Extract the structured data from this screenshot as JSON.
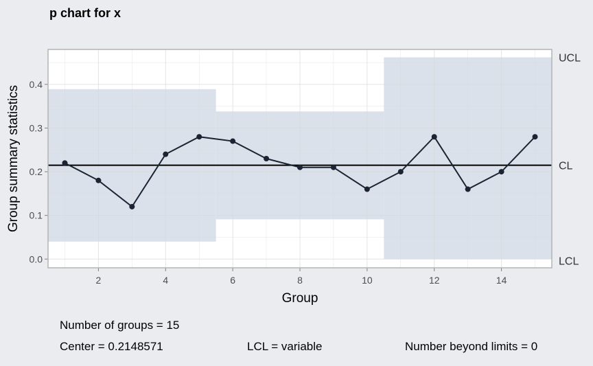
{
  "chart_data": {
    "type": "line",
    "title": "p chart for x",
    "xlabel": "Group",
    "ylabel": "Group summary statistics",
    "xlim": [
      0.5,
      15.5
    ],
    "ylim": [
      -0.02,
      0.48
    ],
    "x_ticks": [
      2,
      4,
      6,
      8,
      10,
      12,
      14
    ],
    "y_ticks": [
      0.0,
      0.1,
      0.2,
      0.3,
      0.4
    ],
    "y_tick_labels": [
      "0.0",
      "0.1",
      "0.2",
      "0.3",
      "0.4"
    ],
    "x": [
      1,
      2,
      3,
      4,
      5,
      6,
      7,
      8,
      9,
      10,
      11,
      12,
      13,
      14,
      15
    ],
    "values": [
      0.22,
      0.18,
      0.12,
      0.24,
      0.28,
      0.27,
      0.23,
      0.21,
      0.21,
      0.16,
      0.2,
      0.28,
      0.16,
      0.2,
      0.28
    ],
    "center": 0.2148571,
    "limit_segments": [
      {
        "from": 0.5,
        "to": 5.5,
        "lcl": 0.04,
        "ucl": 0.389
      },
      {
        "from": 5.5,
        "to": 10.5,
        "lcl": 0.091,
        "ucl": 0.338
      },
      {
        "from": 10.5,
        "to": 15.5,
        "lcl": 0.0,
        "ucl": 0.462
      }
    ],
    "right_labels": {
      "ucl": "UCL",
      "cl": "CL",
      "lcl": "LCL"
    },
    "colors": {
      "background": "#ebecf0",
      "panel": "#ffffff",
      "band": "#dbe1ea",
      "grid": "#d9d9d9",
      "line": "#1c2433",
      "center_line": "#000000"
    },
    "grid": true
  },
  "stats": {
    "groups": "Number of groups = 15",
    "center": "Center = 0.2148571",
    "lcl": "LCL = variable",
    "beyond": "Number beyond limits = 0"
  }
}
